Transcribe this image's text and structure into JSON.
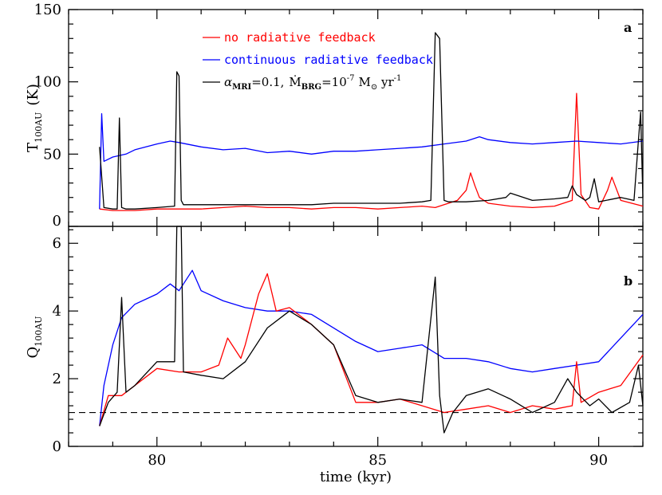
{
  "chart_data": [
    {
      "id": "a",
      "type": "line",
      "panel_label": "a",
      "xlabel": "",
      "ylabel_main": "T",
      "ylabel_sub": "100AU",
      "ylabel_unit": "(K)",
      "xlim": [
        78.0,
        91.0
      ],
      "ylim": [
        0,
        150
      ],
      "yticks": [
        0,
        50,
        100,
        150
      ],
      "grid": false,
      "legend_position": "upper-left-center",
      "legend": [
        {
          "series": "red",
          "color": "#ff0000",
          "text": "no radiative feedback"
        },
        {
          "series": "blue",
          "color": "#0000ff",
          "text": "continuous radiative feedback"
        },
        {
          "series": "black",
          "color": "#000000",
          "text_parts": {
            "alpha": "α",
            "alpha_sub": "MRI",
            "alpha_val": "=0.1,",
            "mdot": "Ṁ",
            "mdot_sub": "BRG",
            "mdot_val": "=10",
            "mdot_exp": "-7",
            "msun": "M",
            "msun_sub": "⊙",
            "unit": " yr",
            "unit_exp": "-1"
          }
        }
      ],
      "series": [
        {
          "key": "red",
          "color": "#ff0000",
          "x": [
            78.7,
            79.0,
            79.5,
            80.0,
            80.5,
            81.0,
            81.5,
            82.0,
            82.5,
            83.0,
            83.5,
            84.0,
            84.5,
            85.0,
            85.5,
            86.0,
            86.3,
            86.5,
            86.8,
            87.0,
            87.1,
            87.2,
            87.3,
            87.5,
            88.0,
            88.5,
            89.0,
            89.4,
            89.5,
            89.6,
            89.8,
            90.0,
            90.2,
            90.3,
            90.5,
            91.0
          ],
          "y": [
            12,
            11,
            11,
            12,
            12,
            12,
            13,
            14,
            13,
            13,
            12,
            13,
            13,
            12,
            13,
            14,
            13,
            15,
            18,
            25,
            37,
            28,
            20,
            16,
            14,
            13,
            14,
            18,
            92,
            22,
            13,
            12,
            25,
            34,
            18,
            14
          ]
        },
        {
          "key": "blue",
          "color": "#0000ff",
          "x": [
            78.7,
            78.75,
            78.8,
            79.0,
            79.3,
            79.5,
            80.0,
            80.3,
            80.5,
            81.0,
            81.5,
            82.0,
            82.5,
            83.0,
            83.5,
            84.0,
            84.5,
            85.0,
            85.5,
            86.0,
            86.5,
            87.0,
            87.3,
            87.5,
            88.0,
            88.5,
            89.0,
            89.5,
            90.0,
            90.5,
            91.0
          ],
          "y": [
            12,
            78,
            45,
            48,
            50,
            53,
            57,
            59,
            58,
            55,
            53,
            54,
            51,
            52,
            50,
            52,
            52,
            53,
            54,
            55,
            57,
            59,
            62,
            60,
            58,
            57,
            58,
            59,
            58,
            57,
            59
          ]
        },
        {
          "key": "black",
          "color": "#000000",
          "x": [
            78.7,
            78.8,
            79.0,
            79.1,
            79.15,
            79.2,
            79.3,
            79.5,
            80.0,
            80.4,
            80.45,
            80.5,
            80.55,
            80.6,
            81.0,
            81.5,
            82.0,
            82.5,
            83.0,
            83.5,
            84.0,
            84.5,
            85.0,
            85.5,
            86.0,
            86.2,
            86.3,
            86.4,
            86.5,
            86.6,
            87.0,
            87.5,
            87.9,
            88.0,
            88.5,
            89.0,
            89.3,
            89.4,
            89.5,
            89.7,
            89.8,
            89.9,
            90.0,
            90.5,
            90.8,
            90.9,
            90.95,
            91.0
          ],
          "y": [
            55,
            13,
            12,
            12,
            75,
            13,
            12,
            12,
            13,
            14,
            107,
            104,
            18,
            15,
            15,
            15,
            15,
            15,
            15,
            15,
            16,
            16,
            16,
            16,
            17,
            18,
            134,
            130,
            18,
            17,
            17,
            18,
            20,
            23,
            18,
            19,
            20,
            28,
            22,
            18,
            20,
            33,
            17,
            20,
            18,
            60,
            79,
            20
          ]
        }
      ]
    },
    {
      "id": "b",
      "type": "line",
      "panel_label": "b",
      "xlabel": "time (kyr)",
      "ylabel_main": "Q",
      "ylabel_sub": "100AU",
      "xlim": [
        78.0,
        91.0
      ],
      "ylim": [
        0,
        6.5
      ],
      "yticks": [
        0,
        2,
        4,
        6
      ],
      "xticks": [
        80,
        85,
        90
      ],
      "grid": false,
      "reference_line": {
        "y": 1.0,
        "style": "dashed",
        "color": "#000000"
      },
      "series": [
        {
          "key": "blue",
          "color": "#0000ff",
          "x": [
            78.7,
            78.8,
            79.0,
            79.2,
            79.5,
            80.0,
            80.3,
            80.5,
            80.8,
            81.0,
            81.5,
            82.0,
            82.5,
            83.0,
            83.5,
            84.0,
            84.5,
            85.0,
            85.5,
            86.0,
            86.5,
            87.0,
            87.5,
            88.0,
            88.5,
            89.0,
            89.5,
            90.0,
            90.5,
            91.0
          ],
          "y": [
            0.6,
            1.8,
            3.0,
            3.8,
            4.2,
            4.5,
            4.8,
            4.6,
            5.2,
            4.6,
            4.3,
            4.1,
            4.0,
            4.0,
            3.9,
            3.5,
            3.1,
            2.8,
            2.9,
            3.0,
            2.6,
            2.6,
            2.5,
            2.3,
            2.2,
            2.3,
            2.4,
            2.5,
            3.2,
            3.9
          ]
        },
        {
          "key": "red",
          "color": "#ff0000",
          "x": [
            78.7,
            78.9,
            79.2,
            79.5,
            80.0,
            80.5,
            81.0,
            81.4,
            81.6,
            81.9,
            82.0,
            82.3,
            82.5,
            82.7,
            83.0,
            83.5,
            84.0,
            84.5,
            85.0,
            85.5,
            86.0,
            86.5,
            87.0,
            87.5,
            88.0,
            88.5,
            89.0,
            89.4,
            89.5,
            89.6,
            90.0,
            90.5,
            91.0
          ],
          "y": [
            0.6,
            1.5,
            1.5,
            1.8,
            2.3,
            2.2,
            2.2,
            2.4,
            3.2,
            2.6,
            3.0,
            4.5,
            5.1,
            4.0,
            4.1,
            3.6,
            3.0,
            1.3,
            1.3,
            1.4,
            1.2,
            1.0,
            1.1,
            1.2,
            1.0,
            1.2,
            1.1,
            1.2,
            2.5,
            1.3,
            1.6,
            1.8,
            2.7
          ]
        },
        {
          "key": "black",
          "color": "#000000",
          "x": [
            78.7,
            78.9,
            79.1,
            79.2,
            79.3,
            79.5,
            80.0,
            80.4,
            80.45,
            80.55,
            80.6,
            81.0,
            81.5,
            82.0,
            82.5,
            83.0,
            83.5,
            84.0,
            84.5,
            85.0,
            85.5,
            86.0,
            86.3,
            86.4,
            86.5,
            86.7,
            87.0,
            87.5,
            88.0,
            88.5,
            89.0,
            89.3,
            89.5,
            89.8,
            90.0,
            90.3,
            90.7,
            90.9,
            91.0
          ],
          "y": [
            0.6,
            1.3,
            1.6,
            4.4,
            1.6,
            1.8,
            2.5,
            2.5,
            6.5,
            6.5,
            2.2,
            2.1,
            2.0,
            2.5,
            3.5,
            4.0,
            3.6,
            3.0,
            1.5,
            1.3,
            1.4,
            1.3,
            5.0,
            1.5,
            0.4,
            1.0,
            1.5,
            1.7,
            1.4,
            1.0,
            1.3,
            2.0,
            1.6,
            1.2,
            1.4,
            1.0,
            1.3,
            2.4,
            1.2
          ]
        }
      ]
    }
  ]
}
